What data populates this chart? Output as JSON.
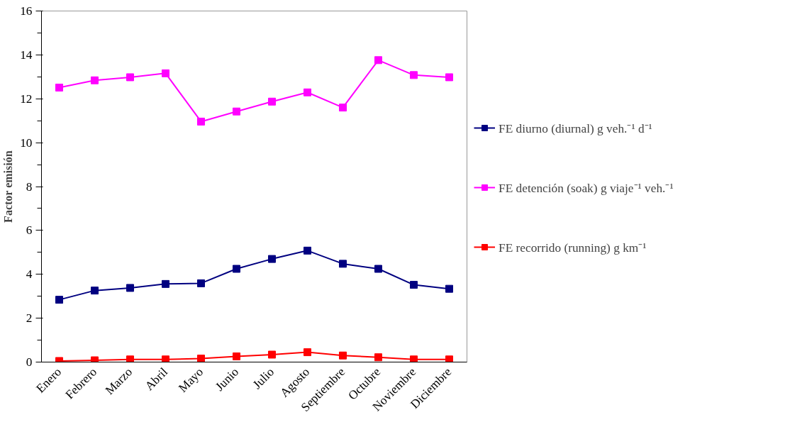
{
  "chart_data": {
    "type": "line",
    "ylabel": "Factor emisión",
    "categories": [
      "Enero",
      "Febrero",
      "Marzo",
      "Abril",
      "Mayo",
      "Junio",
      "Julio",
      "Agosto",
      "Septiembre",
      "Octubre",
      "Noviembre",
      "Diciembre"
    ],
    "series": [
      {
        "name": "FE diurno (diurnal) g veh.⁻¹ d⁻¹",
        "color": "#000080",
        "values": [
          2.84,
          3.26,
          3.38,
          3.56,
          3.59,
          4.25,
          4.7,
          5.08,
          4.48,
          4.25,
          3.52,
          3.34
        ]
      },
      {
        "name": "FE detención (soak) g viaje⁻¹ veh.⁻¹",
        "color": "#ff00ff",
        "values": [
          12.51,
          12.84,
          12.98,
          13.16,
          10.96,
          11.42,
          11.87,
          12.29,
          11.6,
          13.76,
          13.08,
          12.98
        ]
      },
      {
        "name": "FE recorrido (running) g km⁻¹",
        "color": "#ff0000",
        "values": [
          0.05,
          0.08,
          0.12,
          0.12,
          0.16,
          0.26,
          0.34,
          0.45,
          0.3,
          0.22,
          0.12,
          0.12
        ]
      }
    ],
    "ylim": [
      0,
      16
    ],
    "yticks": [
      0,
      2,
      4,
      6,
      8,
      10,
      12,
      14,
      16
    ],
    "marker": "square",
    "line_style": "solid",
    "grid": false,
    "legend": "right"
  }
}
